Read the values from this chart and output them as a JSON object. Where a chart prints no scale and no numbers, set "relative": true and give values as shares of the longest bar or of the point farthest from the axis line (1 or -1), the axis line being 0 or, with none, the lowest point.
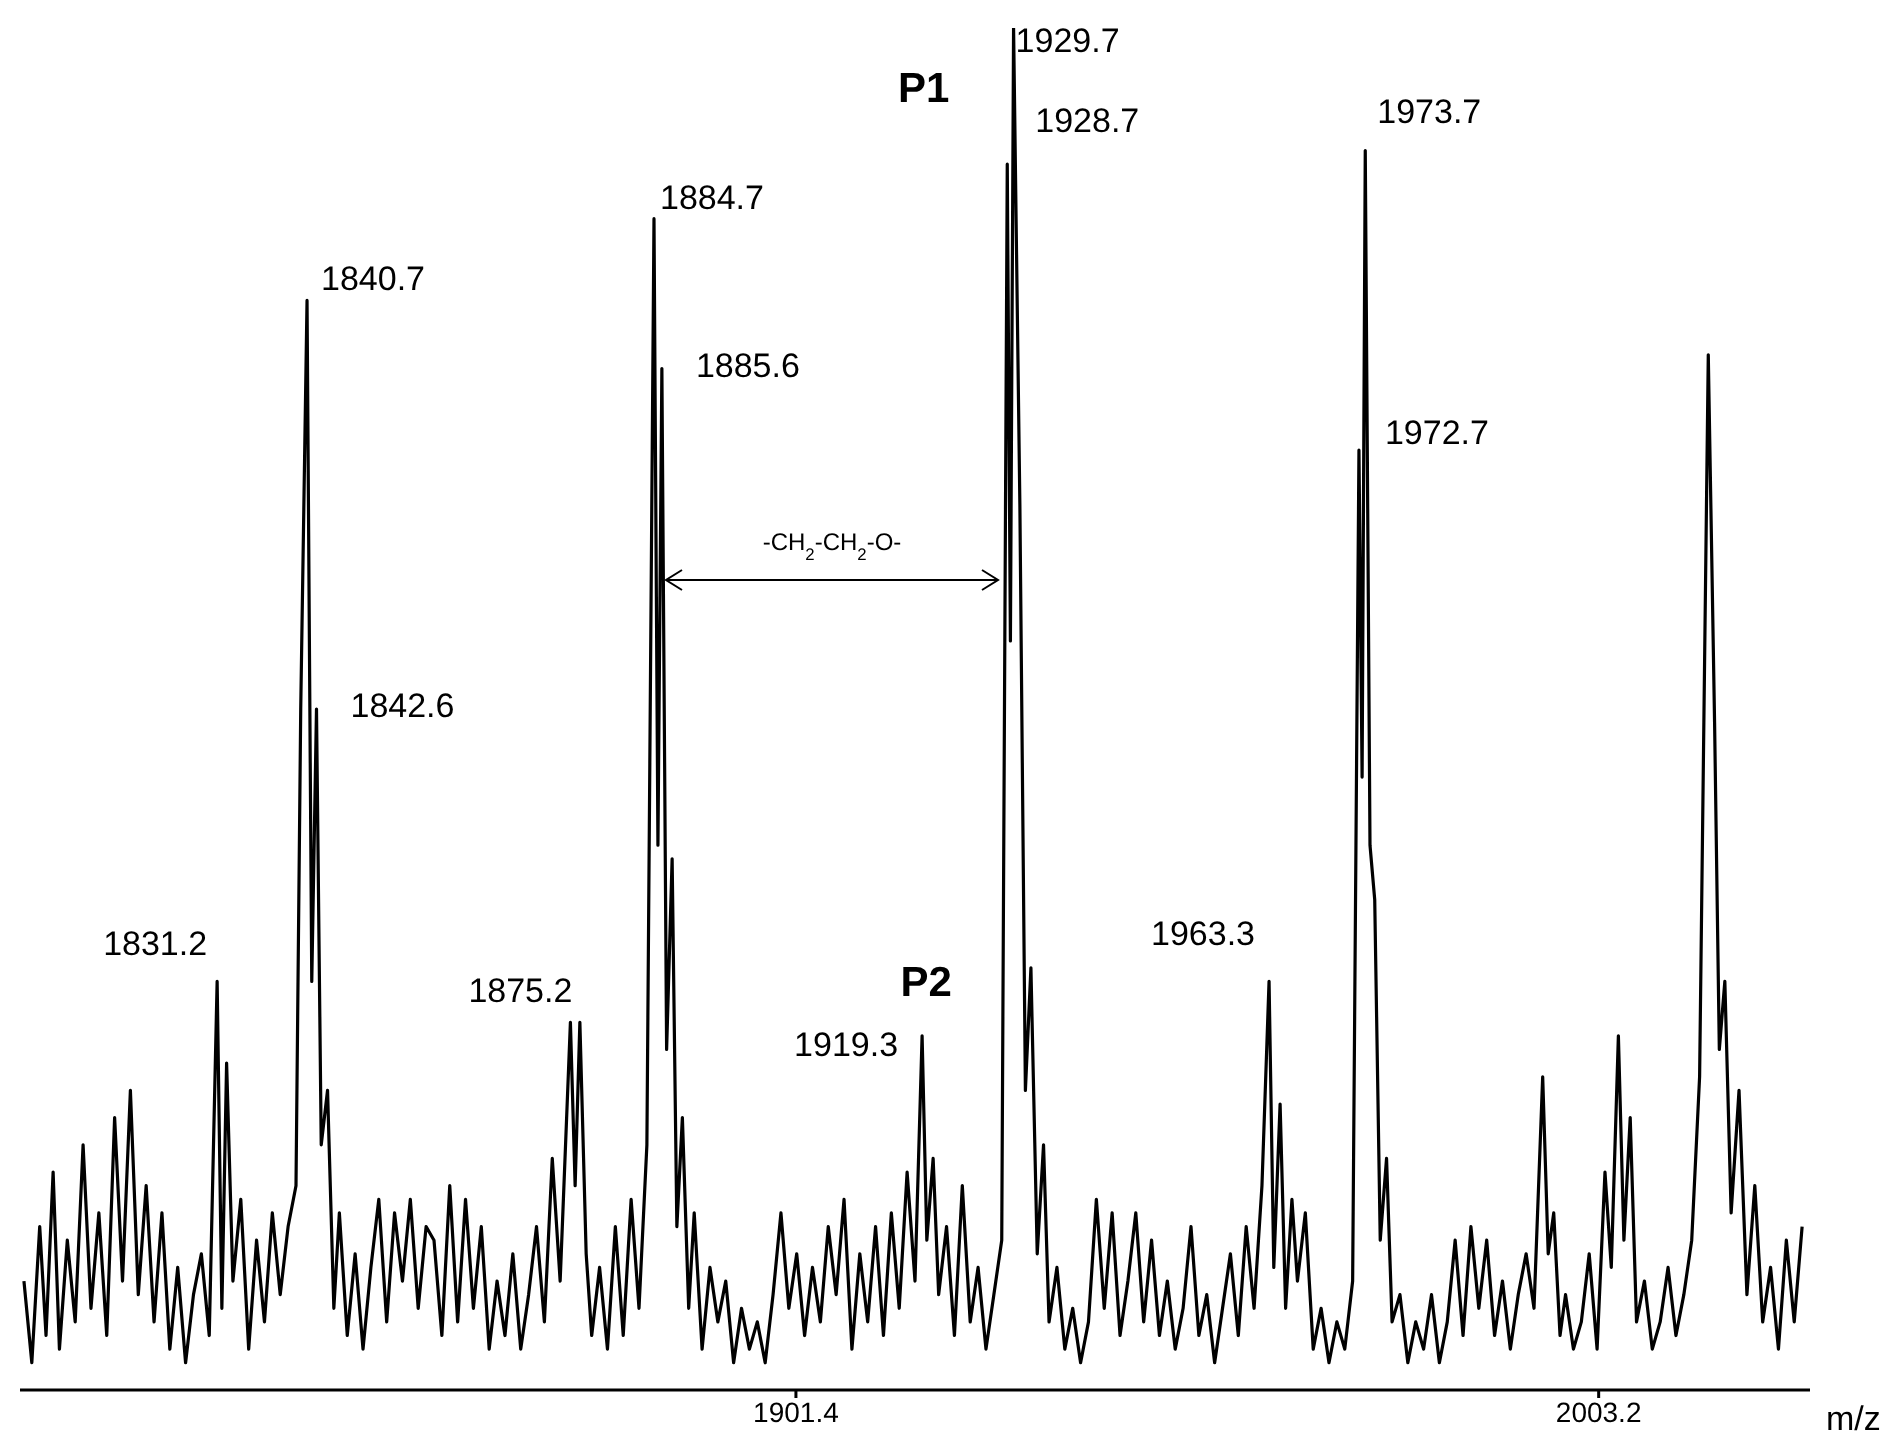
{
  "chart_data": {
    "type": "line",
    "relative": true,
    "xlabel": "m/z",
    "xlim": [
      1803,
      2030
    ],
    "xticks": [
      1901.4,
      2003.2
    ],
    "marker": "none",
    "line_style": "solid",
    "x": [
      1803.5,
      1804.5,
      1805.5,
      1806.3,
      1807.2,
      1808.0,
      1809.0,
      1810.0,
      1811.0,
      1812.0,
      1813.0,
      1814.0,
      1815.0,
      1816.0,
      1817.0,
      1818.0,
      1819.0,
      1820.0,
      1821.0,
      1822.0,
      1823.0,
      1824.0,
      1825.0,
      1826.0,
      1827.0,
      1828.0,
      1828.6,
      1829.2,
      1830.0,
      1831.0,
      1832.0,
      1833.0,
      1834.0,
      1835.0,
      1836.0,
      1837.0,
      1838.0,
      1838.6,
      1839.4,
      1840.0,
      1840.6,
      1841.2,
      1842.0,
      1842.8,
      1843.5,
      1844.5,
      1845.5,
      1846.5,
      1847.5,
      1848.5,
      1849.5,
      1850.5,
      1851.5,
      1852.5,
      1853.5,
      1854.5,
      1855.5,
      1856.5,
      1857.5,
      1858.5,
      1859.5,
      1860.5,
      1861.5,
      1862.5,
      1863.5,
      1864.5,
      1865.5,
      1866.5,
      1867.5,
      1868.5,
      1869.5,
      1870.5,
      1871.5,
      1872.8,
      1873.4,
      1874.0,
      1874.8,
      1875.5,
      1876.5,
      1877.5,
      1878.5,
      1879.5,
      1880.5,
      1881.5,
      1882.5,
      1883.4,
      1883.9,
      1884.4,
      1885.0,
      1885.7,
      1886.3,
      1887.0,
      1887.8,
      1888.5,
      1889.5,
      1890.5,
      1891.5,
      1892.5,
      1893.5,
      1894.5,
      1895.5,
      1896.5,
      1897.5,
      1898.5,
      1899.5,
      1900.5,
      1901.5,
      1902.5,
      1903.5,
      1904.5,
      1905.5,
      1906.5,
      1907.5,
      1908.5,
      1909.5,
      1910.5,
      1911.5,
      1912.5,
      1913.5,
      1914.5,
      1915.5,
      1916.5,
      1917.4,
      1918.0,
      1918.8,
      1919.5,
      1920.5,
      1921.5,
      1922.5,
      1923.5,
      1924.5,
      1925.5,
      1926.5,
      1927.5,
      1928.2,
      1928.6,
      1929.0,
      1929.8,
      1930.5,
      1931.2,
      1932.0,
      1932.8,
      1933.5,
      1934.5,
      1935.5,
      1936.5,
      1937.5,
      1938.5,
      1939.5,
      1940.5,
      1941.5,
      1942.5,
      1943.5,
      1944.5,
      1945.5,
      1946.5,
      1947.5,
      1948.5,
      1949.5,
      1950.5,
      1951.5,
      1952.5,
      1953.5,
      1954.5,
      1955.5,
      1956.5,
      1957.5,
      1958.5,
      1959.5,
      1960.5,
      1961.4,
      1962.0,
      1962.8,
      1963.5,
      1964.3,
      1965.0,
      1966.0,
      1967.0,
      1968.0,
      1969.0,
      1970.0,
      1971.0,
      1972.0,
      1972.8,
      1973.2,
      1973.6,
      1974.2,
      1974.8,
      1975.5,
      1976.3,
      1977.0,
      1978.0,
      1979.0,
      1980.0,
      1981.0,
      1982.0,
      1983.0,
      1984.0,
      1985.0,
      1986.0,
      1987.0,
      1988.0,
      1989.0,
      1990.0,
      1991.0,
      1992.0,
      1993.0,
      1994.0,
      1995.0,
      1996.1,
      1996.8,
      1997.5,
      1998.3,
      1999.0,
      2000.0,
      2001.0,
      2002.0,
      2003.0,
      2004.0,
      2004.8,
      2005.7,
      2006.4,
      2007.2,
      2008.0,
      2009.0,
      2010.0,
      2011.0,
      2012.0,
      2013.0,
      2014.0,
      2015.0,
      2016.0,
      2017.1,
      2017.9,
      2018.5,
      2019.2,
      2020.0,
      2021.0,
      2022.0,
      2023.0,
      2024.0,
      2025.0,
      2026.0,
      2027.0,
      2028.0,
      2029.0
    ],
    "series": [
      {
        "color": "#000000",
        "values": [
          0.08,
          0.02,
          0.12,
          0.04,
          0.16,
          0.03,
          0.11,
          0.05,
          0.18,
          0.06,
          0.13,
          0.04,
          0.2,
          0.08,
          0.22,
          0.07,
          0.15,
          0.05,
          0.13,
          0.03,
          0.09,
          0.02,
          0.07,
          0.1,
          0.04,
          0.3,
          0.06,
          0.24,
          0.08,
          0.14,
          0.03,
          0.11,
          0.05,
          0.13,
          0.07,
          0.12,
          0.15,
          0.5,
          0.8,
          0.3,
          0.5,
          0.18,
          0.22,
          0.06,
          0.13,
          0.04,
          0.1,
          0.03,
          0.09,
          0.14,
          0.05,
          0.13,
          0.08,
          0.14,
          0.06,
          0.12,
          0.11,
          0.04,
          0.15,
          0.05,
          0.14,
          0.06,
          0.12,
          0.03,
          0.08,
          0.04,
          0.1,
          0.03,
          0.07,
          0.12,
          0.05,
          0.17,
          0.08,
          0.27,
          0.15,
          0.27,
          0.1,
          0.04,
          0.09,
          0.03,
          0.12,
          0.04,
          0.14,
          0.06,
          0.18,
          0.86,
          0.4,
          0.75,
          0.25,
          0.39,
          0.12,
          0.2,
          0.06,
          0.13,
          0.03,
          0.09,
          0.05,
          0.08,
          0.02,
          0.06,
          0.03,
          0.05,
          0.02,
          0.07,
          0.13,
          0.06,
          0.1,
          0.04,
          0.09,
          0.05,
          0.12,
          0.07,
          0.14,
          0.03,
          0.1,
          0.05,
          0.12,
          0.04,
          0.13,
          0.06,
          0.16,
          0.08,
          0.26,
          0.11,
          0.17,
          0.07,
          0.12,
          0.04,
          0.15,
          0.05,
          0.09,
          0.03,
          0.07,
          0.11,
          0.9,
          0.55,
          1,
          0.65,
          0.22,
          0.31,
          0.1,
          0.18,
          0.05,
          0.09,
          0.03,
          0.06,
          0.02,
          0.05,
          0.14,
          0.06,
          0.13,
          0.04,
          0.08,
          0.13,
          0.05,
          0.11,
          0.04,
          0.08,
          0.03,
          0.06,
          0.12,
          0.04,
          0.07,
          0.02,
          0.06,
          0.1,
          0.04,
          0.12,
          0.06,
          0.15,
          0.3,
          0.09,
          0.21,
          0.06,
          0.14,
          0.08,
          0.13,
          0.03,
          0.06,
          0.02,
          0.05,
          0.03,
          0.08,
          0.69,
          0.45,
          0.91,
          0.4,
          0.36,
          0.11,
          0.17,
          0.05,
          0.07,
          0.02,
          0.05,
          0.03,
          0.07,
          0.02,
          0.05,
          0.11,
          0.04,
          0.12,
          0.06,
          0.11,
          0.04,
          0.08,
          0.03,
          0.07,
          0.1,
          0.06,
          0.23,
          0.1,
          0.13,
          0.04,
          0.07,
          0.03,
          0.05,
          0.1,
          0.03,
          0.16,
          0.09,
          0.26,
          0.11,
          0.2,
          0.05,
          0.08,
          0.03,
          0.05,
          0.09,
          0.04,
          0.07,
          0.11,
          0.23,
          0.76,
          0.49,
          0.25,
          0.3,
          0.13,
          0.22,
          0.07,
          0.15,
          0.05,
          0.09,
          0.03,
          0.11,
          0.05,
          0.12
        ]
      }
    ],
    "annotations": [
      {
        "text": "1831.2",
        "x": 1828.0,
        "y": 0.3
      },
      {
        "text": "1840.7",
        "x": 1839.4,
        "y": 0.8
      },
      {
        "text": "1842.6",
        "x": 1840.6,
        "y": 0.5
      },
      {
        "text": "1875.2",
        "x": 1872.8,
        "y": 0.27
      },
      {
        "text": "1884.7",
        "x": 1883.4,
        "y": 0.86
      },
      {
        "text": "1885.6",
        "x": 1884.4,
        "y": 0.75
      },
      {
        "text": "1919.3",
        "x": 1917.4,
        "y": 0.26
      },
      {
        "text": "P2",
        "x": 1917.4,
        "y": 0.26
      },
      {
        "text": "1929.7",
        "x": 1929.0,
        "y": 1
      },
      {
        "text": "P1",
        "x": 1929.0,
        "y": 1
      },
      {
        "text": "1928.7",
        "x": 1928.2,
        "y": 0.9
      },
      {
        "text": "1963.3",
        "x": 1961.4,
        "y": 0.3
      },
      {
        "text": "1973.7",
        "x": 1973.6,
        "y": 0.91
      },
      {
        "text": "1972.7",
        "x": 1972.8,
        "y": 0.69
      },
      "-CH$_{2}$-CH$_{2}$-O-"
    ]
  }
}
